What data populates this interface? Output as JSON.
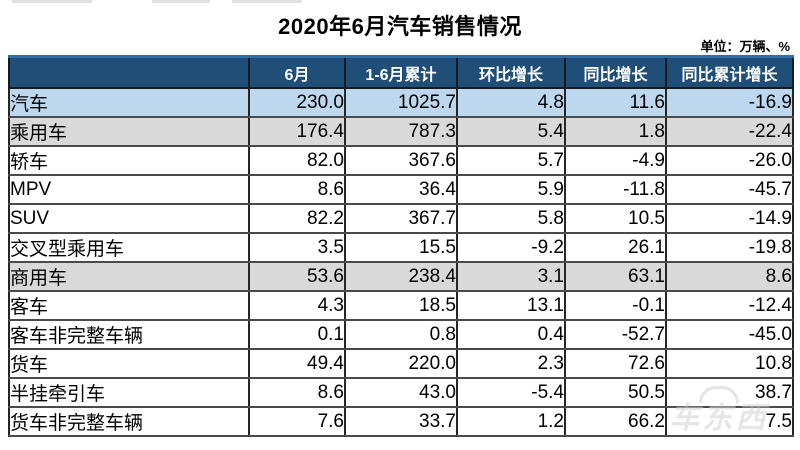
{
  "title": "2020年6月汽车销售情况",
  "unit_label": "单位：万辆、%",
  "watermark": "车东西",
  "colors": {
    "header_bg": "#1f4e79",
    "header_text": "#ffffff",
    "header_top_line": "#2e6da6",
    "blue": "#bdd7ee",
    "gray": "#d9d9d9",
    "white": "#ffffff",
    "border": "#262626"
  },
  "table": {
    "columns": [
      "",
      "6月",
      "1-6月累计",
      "环比增长",
      "同比增长",
      "同比累计增长"
    ],
    "rows": [
      {
        "label": "汽车",
        "indent": 0,
        "style": "blue",
        "small": false,
        "values": [
          "230.0",
          "1025.7",
          "4.8",
          "11.6",
          "-16.9"
        ]
      },
      {
        "label": "乘用车",
        "indent": 1,
        "style": "gray",
        "small": false,
        "values": [
          "176.4",
          "787.3",
          "5.4",
          "1.8",
          "-22.4"
        ]
      },
      {
        "label": "轿车",
        "indent": 2,
        "style": "white",
        "small": false,
        "values": [
          "82.0",
          "367.6",
          "5.7",
          "-4.9",
          "-26.0"
        ]
      },
      {
        "label": "MPV",
        "indent": 2,
        "style": "white",
        "small": false,
        "values": [
          "8.6",
          "36.4",
          "5.9",
          "-11.8",
          "-45.7"
        ]
      },
      {
        "label": "SUV",
        "indent": 2,
        "style": "white",
        "small": false,
        "values": [
          "82.2",
          "367.7",
          "5.8",
          "10.5",
          "-14.9"
        ]
      },
      {
        "label": "交叉型乘用车",
        "indent": 2,
        "style": "white",
        "small": false,
        "values": [
          "3.5",
          "15.5",
          "-9.2",
          "26.1",
          "-19.8"
        ]
      },
      {
        "label": "商用车",
        "indent": 1,
        "style": "gray",
        "small": false,
        "values": [
          "53.6",
          "238.4",
          "3.1",
          "63.1",
          "8.6"
        ]
      },
      {
        "label": "客车",
        "indent": 2,
        "style": "white",
        "small": false,
        "values": [
          "4.3",
          "18.5",
          "13.1",
          "-0.1",
          "-12.4"
        ]
      },
      {
        "label": "客车非完整车辆",
        "indent": 3,
        "style": "white",
        "small": true,
        "values": [
          "0.1",
          "0.8",
          "0.4",
          "-52.7",
          "-45.0"
        ]
      },
      {
        "label": "货车",
        "indent": 2,
        "style": "white",
        "small": false,
        "values": [
          "49.4",
          "220.0",
          "2.3",
          "72.6",
          "10.8"
        ]
      },
      {
        "label": "半挂牵引车",
        "indent": 3,
        "style": "white",
        "small": true,
        "values": [
          "8.6",
          "43.0",
          "-5.4",
          "50.5",
          "38.7"
        ]
      },
      {
        "label": "货车非完整车辆",
        "indent": 3,
        "style": "white",
        "small": true,
        "values": [
          "7.6",
          "33.7",
          "1.2",
          "66.2",
          "7.5"
        ]
      }
    ]
  },
  "chart_data": {
    "type": "table",
    "title": "2020年6月汽车销售情况",
    "unit": "万辆、%",
    "columns": [
      "6月",
      "1-6月累计",
      "环比增长",
      "同比增长",
      "同比累计增长"
    ],
    "rows": [
      {
        "category": "汽车",
        "june": 230.0,
        "jan_jun_cum": 1025.7,
        "mom_growth": 4.8,
        "yoy_growth": 11.6,
        "yoy_cum_growth": -16.9
      },
      {
        "category": "乘用车",
        "june": 176.4,
        "jan_jun_cum": 787.3,
        "mom_growth": 5.4,
        "yoy_growth": 1.8,
        "yoy_cum_growth": -22.4
      },
      {
        "category": "轿车",
        "june": 82.0,
        "jan_jun_cum": 367.6,
        "mom_growth": 5.7,
        "yoy_growth": -4.9,
        "yoy_cum_growth": -26.0
      },
      {
        "category": "MPV",
        "june": 8.6,
        "jan_jun_cum": 36.4,
        "mom_growth": 5.9,
        "yoy_growth": -11.8,
        "yoy_cum_growth": -45.7
      },
      {
        "category": "SUV",
        "june": 82.2,
        "jan_jun_cum": 367.7,
        "mom_growth": 5.8,
        "yoy_growth": 10.5,
        "yoy_cum_growth": -14.9
      },
      {
        "category": "交叉型乘用车",
        "june": 3.5,
        "jan_jun_cum": 15.5,
        "mom_growth": -9.2,
        "yoy_growth": 26.1,
        "yoy_cum_growth": -19.8
      },
      {
        "category": "商用车",
        "june": 53.6,
        "jan_jun_cum": 238.4,
        "mom_growth": 3.1,
        "yoy_growth": 63.1,
        "yoy_cum_growth": 8.6
      },
      {
        "category": "客车",
        "june": 4.3,
        "jan_jun_cum": 18.5,
        "mom_growth": 13.1,
        "yoy_growth": -0.1,
        "yoy_cum_growth": -12.4
      },
      {
        "category": "客车非完整车辆",
        "june": 0.1,
        "jan_jun_cum": 0.8,
        "mom_growth": 0.4,
        "yoy_growth": -52.7,
        "yoy_cum_growth": -45.0
      },
      {
        "category": "货车",
        "june": 49.4,
        "jan_jun_cum": 220.0,
        "mom_growth": 2.3,
        "yoy_growth": 72.6,
        "yoy_cum_growth": 10.8
      },
      {
        "category": "半挂牵引车",
        "june": 8.6,
        "jan_jun_cum": 43.0,
        "mom_growth": -5.4,
        "yoy_growth": 50.5,
        "yoy_cum_growth": 38.7
      },
      {
        "category": "货车非完整车辆",
        "june": 7.6,
        "jan_jun_cum": 33.7,
        "mom_growth": 1.2,
        "yoy_growth": 66.2,
        "yoy_cum_growth": 7.5
      }
    ]
  }
}
